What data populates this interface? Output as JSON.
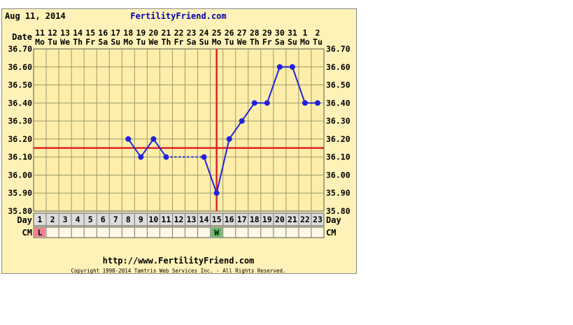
{
  "header": {
    "date": "Aug 11, 2014",
    "site": "FertilityFriend.com"
  },
  "footer": {
    "url": "http://www.FertilityFriend.com",
    "copyright": "Copyright 1998-2014 Tamtris Web Services Inc. - All Rights Reserved."
  },
  "row_labels": {
    "date": "Date",
    "day": "Day",
    "cm": "CM"
  },
  "colors": {
    "panel_bg": "#fff2b8",
    "plot_bg": "#ffeeaa",
    "grid": "#9a9a6a",
    "line": "#2222dd",
    "coverline": "#dd2222",
    "ovulation": "#dd2222",
    "title": "#0000aa",
    "cm_L": "#f08090",
    "cm_W": "#66bb66",
    "day_row": "#dddddd"
  },
  "chart_data": {
    "type": "line",
    "title": "",
    "xlabel": "Day",
    "ylabel": "",
    "ylim": [
      35.8,
      36.7
    ],
    "y_ticks": [
      "35.80",
      "35.90",
      "36.00",
      "36.10",
      "36.20",
      "36.30",
      "36.40",
      "36.50",
      "36.60",
      "36.70"
    ],
    "days": [
      1,
      2,
      3,
      4,
      5,
      6,
      7,
      8,
      9,
      10,
      11,
      12,
      13,
      14,
      15,
      16,
      17,
      18,
      19,
      20,
      21,
      22,
      23
    ],
    "dates": [
      "11",
      "12",
      "13",
      "14",
      "15",
      "16",
      "17",
      "18",
      "19",
      "20",
      "21",
      "22",
      "23",
      "24",
      "25",
      "26",
      "27",
      "28",
      "29",
      "30",
      "31",
      "1",
      "2"
    ],
    "weekdays": [
      "Mo",
      "Tu",
      "We",
      "Th",
      "Fr",
      "Sa",
      "Su",
      "Mo",
      "Tu",
      "We",
      "Th",
      "Fr",
      "Sa",
      "Su",
      "Mo",
      "Tu",
      "We",
      "Th",
      "Fr",
      "Sa",
      "Su",
      "Mo",
      "Tu"
    ],
    "temperatures": [
      null,
      null,
      null,
      null,
      null,
      null,
      null,
      36.2,
      36.1,
      36.2,
      36.1,
      null,
      null,
      36.1,
      35.9,
      36.2,
      36.3,
      36.4,
      36.4,
      36.6,
      36.6,
      36.4,
      36.4
    ],
    "coverline": 36.15,
    "ovulation_day": 15,
    "cervical_mucus": [
      {
        "day": 1,
        "code": "L"
      },
      {
        "day": 15,
        "code": "W"
      }
    ],
    "grid": true
  }
}
